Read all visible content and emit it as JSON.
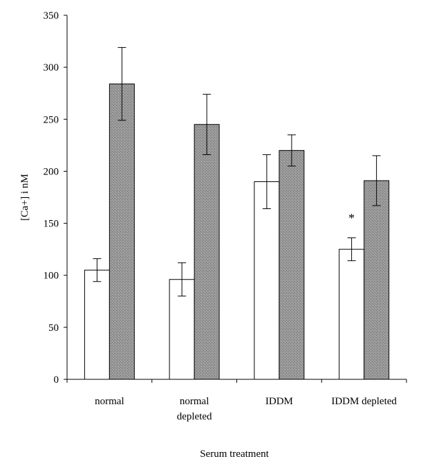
{
  "chart_data": {
    "type": "bar",
    "title": "",
    "xlabel": "Serum treatment",
    "ylabel": "[Ca+] i nM",
    "ylim": [
      0,
      350
    ],
    "yticks": [
      0,
      50,
      100,
      150,
      200,
      250,
      300,
      350
    ],
    "categories": [
      [
        "normal"
      ],
      [
        "normal",
        "depleted"
      ],
      [
        "IDDM"
      ],
      [
        "IDDM depleted"
      ]
    ],
    "series": [
      {
        "fill": "#ffffff",
        "values": [
          105,
          96,
          190,
          125
        ],
        "errors": [
          11,
          16,
          26,
          11
        ]
      },
      {
        "fill": "#8c8c8c",
        "values": [
          284,
          245,
          220,
          191
        ],
        "errors": [
          35,
          29,
          15,
          24
        ]
      }
    ],
    "annotations": [
      {
        "text": "*",
        "category_index": 3,
        "series_index": 0,
        "y": 155
      }
    ],
    "grid": false,
    "legend": "none"
  }
}
